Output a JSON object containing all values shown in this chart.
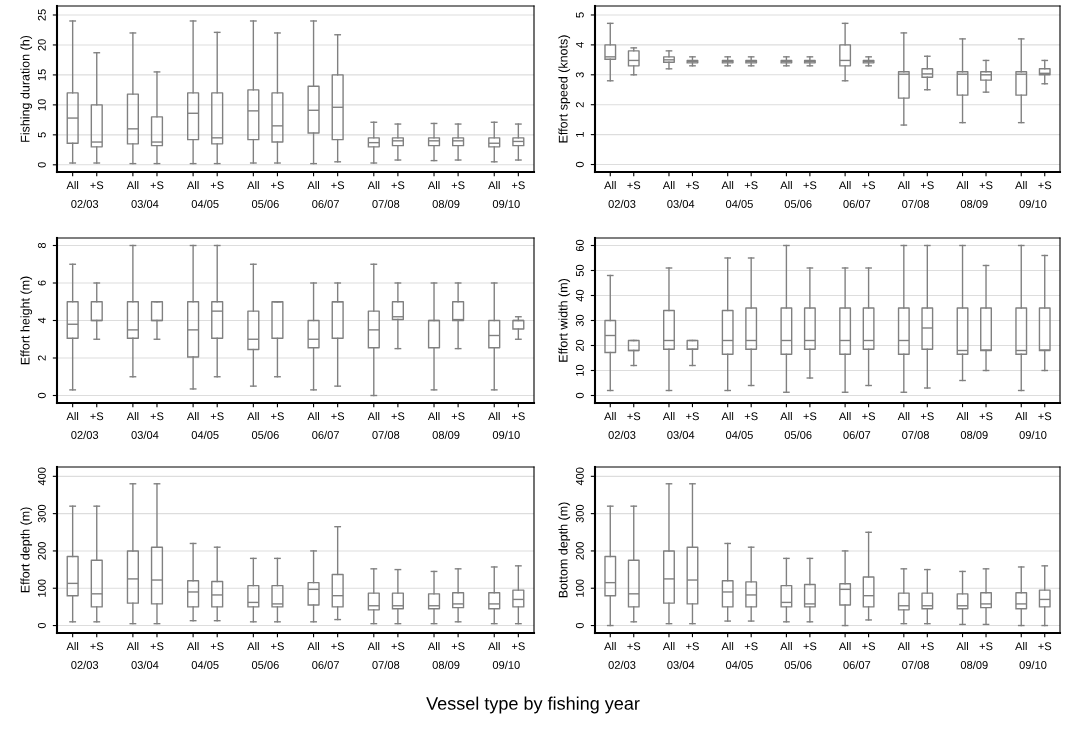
{
  "chart_data": [
    {
      "type": "box",
      "ylabel": "Fishing duration (h)",
      "categories": [
        "All",
        "+S",
        "All",
        "+S",
        "All",
        "+S",
        "All",
        "+S",
        "All",
        "+S",
        "All",
        "+S",
        "All",
        "+S",
        "All",
        "+S"
      ],
      "annotations": [
        "02/03",
        "03/04",
        "04/05",
        "05/06",
        "06/07",
        "07/08",
        "08/09",
        "09/10"
      ],
      "color": "#808080",
      "ylim": [
        -1.2,
        26.5
      ],
      "yticks": [
        0,
        5,
        10,
        15,
        20,
        25
      ],
      "grid": "y",
      "boxes": [
        {
          "low": 0.3,
          "q1": 3.6,
          "median": 7.8,
          "q3": 12,
          "high": 24
        },
        {
          "low": 0.3,
          "q1": 3,
          "median": 3.8,
          "q3": 10,
          "high": 18.7
        },
        {
          "low": 0.2,
          "q1": 3.5,
          "median": 6,
          "q3": 11.8,
          "high": 22
        },
        {
          "low": 0.2,
          "q1": 3.2,
          "median": 3.8,
          "q3": 8,
          "high": 15.5
        },
        {
          "low": 0.2,
          "q1": 4.2,
          "median": 8.6,
          "q3": 12,
          "high": 24
        },
        {
          "low": 0.2,
          "q1": 3.5,
          "median": 4.5,
          "q3": 12,
          "high": 22.1
        },
        {
          "low": 0.3,
          "q1": 4.2,
          "median": 9,
          "q3": 12.5,
          "high": 24
        },
        {
          "low": 0.3,
          "q1": 3.8,
          "median": 6.5,
          "q3": 12,
          "high": 22
        },
        {
          "low": 0.2,
          "q1": 5.3,
          "median": 9.1,
          "q3": 13.1,
          "high": 24
        },
        {
          "low": 0.5,
          "q1": 4.2,
          "median": 9.6,
          "q3": 15,
          "high": 21.7
        },
        {
          "low": 0.3,
          "q1": 3,
          "median": 3.7,
          "q3": 4.5,
          "high": 7.1
        },
        {
          "low": 0.8,
          "q1": 3.2,
          "median": 4,
          "q3": 4.5,
          "high": 6.8
        },
        {
          "low": 0.7,
          "q1": 3.2,
          "median": 4,
          "q3": 4.5,
          "high": 6.9
        },
        {
          "low": 0.8,
          "q1": 3.2,
          "median": 4,
          "q3": 4.5,
          "high": 6.8
        },
        {
          "low": 0.5,
          "q1": 3,
          "median": 3.6,
          "q3": 4.5,
          "high": 7.1
        },
        {
          "low": 0.8,
          "q1": 3.2,
          "median": 3.9,
          "q3": 4.5,
          "high": 6.8
        }
      ]
    },
    {
      "type": "box",
      "ylabel": "Effort speed (knots)",
      "categories": [
        "All",
        "+S",
        "All",
        "+S",
        "All",
        "+S",
        "All",
        "+S",
        "All",
        "+S",
        "All",
        "+S",
        "All",
        "+S",
        "All",
        "+S"
      ],
      "annotations": [
        "02/03",
        "03/04",
        "04/05",
        "05/06",
        "06/07",
        "07/08",
        "08/09",
        "09/10"
      ],
      "color": "#808080",
      "ylim": [
        -0.25,
        5.3
      ],
      "yticks": [
        0,
        1,
        2,
        3,
        4,
        5
      ],
      "grid": "y",
      "boxes": [
        {
          "low": 2.8,
          "q1": 3.52,
          "median": 3.6,
          "q3": 4.0,
          "high": 4.72
        },
        {
          "low": 3.0,
          "q1": 3.3,
          "median": 3.48,
          "q3": 3.8,
          "high": 3.9
        },
        {
          "low": 3.2,
          "q1": 3.42,
          "median": 3.5,
          "q3": 3.6,
          "high": 3.8
        },
        {
          "low": 3.3,
          "q1": 3.4,
          "median": 3.44,
          "q3": 3.48,
          "high": 3.6
        },
        {
          "low": 3.3,
          "q1": 3.4,
          "median": 3.44,
          "q3": 3.48,
          "high": 3.6
        },
        {
          "low": 3.3,
          "q1": 3.4,
          "median": 3.44,
          "q3": 3.48,
          "high": 3.6
        },
        {
          "low": 3.3,
          "q1": 3.4,
          "median": 3.44,
          "q3": 3.48,
          "high": 3.6
        },
        {
          "low": 3.3,
          "q1": 3.4,
          "median": 3.44,
          "q3": 3.48,
          "high": 3.6
        },
        {
          "low": 2.8,
          "q1": 3.3,
          "median": 3.48,
          "q3": 4.0,
          "high": 4.72
        },
        {
          "low": 3.3,
          "q1": 3.4,
          "median": 3.44,
          "q3": 3.48,
          "high": 3.6
        },
        {
          "low": 1.32,
          "q1": 2.22,
          "median": 3.02,
          "q3": 3.1,
          "high": 4.4
        },
        {
          "low": 2.5,
          "q1": 2.92,
          "median": 3.03,
          "q3": 3.2,
          "high": 3.62
        },
        {
          "low": 1.4,
          "q1": 2.32,
          "median": 3.02,
          "q3": 3.1,
          "high": 4.2
        },
        {
          "low": 2.42,
          "q1": 2.82,
          "median": 3.0,
          "q3": 3.1,
          "high": 3.48
        },
        {
          "low": 1.4,
          "q1": 2.32,
          "median": 3.02,
          "q3": 3.1,
          "high": 4.2
        },
        {
          "low": 2.7,
          "q1": 3.0,
          "median": 3.05,
          "q3": 3.2,
          "high": 3.48
        }
      ]
    },
    {
      "type": "box",
      "ylabel": "Effort height (m)",
      "categories": [
        "All",
        "+S",
        "All",
        "+S",
        "All",
        "+S",
        "All",
        "+S",
        "All",
        "+S",
        "All",
        "+S",
        "All",
        "+S",
        "All",
        "+S"
      ],
      "annotations": [
        "02/03",
        "03/04",
        "04/05",
        "05/06",
        "06/07",
        "07/08",
        "08/09",
        "09/10"
      ],
      "color": "#808080",
      "ylim": [
        -0.4,
        8.4
      ],
      "yticks": [
        0,
        2,
        4,
        6,
        8
      ],
      "grid": "y",
      "boxes": [
        {
          "low": 0.3,
          "q1": 3.05,
          "median": 3.8,
          "q3": 5,
          "high": 7
        },
        {
          "low": 3,
          "q1": 4,
          "median": 4,
          "q3": 5,
          "high": 6
        },
        {
          "low": 1,
          "q1": 3.05,
          "median": 3.5,
          "q3": 5,
          "high": 8
        },
        {
          "low": 3,
          "q1": 4,
          "median": 4,
          "q3": 5,
          "high": 5
        },
        {
          "low": 0.35,
          "q1": 2.05,
          "median": 3.5,
          "q3": 5,
          "high": 8
        },
        {
          "low": 1,
          "q1": 3.05,
          "median": 4.5,
          "q3": 5,
          "high": 8
        },
        {
          "low": 0.5,
          "q1": 2.45,
          "median": 3,
          "q3": 4.5,
          "high": 7
        },
        {
          "low": 1,
          "q1": 3.05,
          "median": 5,
          "q3": 5,
          "high": 5
        },
        {
          "low": 0.3,
          "q1": 2.55,
          "median": 3,
          "q3": 4,
          "high": 6
        },
        {
          "low": 0.5,
          "q1": 3.05,
          "median": 5,
          "q3": 5,
          "high": 6
        },
        {
          "low": 0,
          "q1": 2.55,
          "median": 3.5,
          "q3": 4.5,
          "high": 7
        },
        {
          "low": 2.5,
          "q1": 4.05,
          "median": 4.2,
          "q3": 5,
          "high": 6
        },
        {
          "low": 0.3,
          "q1": 2.55,
          "median": 4,
          "q3": 4,
          "high": 6
        },
        {
          "low": 2.5,
          "q1": 4,
          "median": 4.05,
          "q3": 5,
          "high": 6
        },
        {
          "low": 0.3,
          "q1": 2.55,
          "median": 3.2,
          "q3": 4,
          "high": 6
        },
        {
          "low": 3,
          "q1": 3.55,
          "median": 4,
          "q3": 4,
          "high": 4.2
        }
      ]
    },
    {
      "type": "box",
      "ylabel": "Effort width (m)",
      "categories": [
        "All",
        "+S",
        "All",
        "+S",
        "All",
        "+S",
        "All",
        "+S",
        "All",
        "+S",
        "All",
        "+S",
        "All",
        "+S",
        "All",
        "+S"
      ],
      "annotations": [
        "02/03",
        "03/04",
        "04/05",
        "05/06",
        "06/07",
        "07/08",
        "08/09",
        "09/10"
      ],
      "color": "#808080",
      "ylim": [
        -3,
        63
      ],
      "yticks": [
        0,
        10,
        20,
        30,
        40,
        50,
        60
      ],
      "grid": "y",
      "boxes": [
        {
          "low": 2,
          "q1": 17.2,
          "median": 24,
          "q3": 30,
          "high": 48
        },
        {
          "low": 12,
          "q1": 18,
          "median": 18,
          "q3": 22,
          "high": 22
        },
        {
          "low": 2,
          "q1": 18.5,
          "median": 22,
          "q3": 34,
          "high": 51
        },
        {
          "low": 12,
          "q1": 18.5,
          "median": 18.5,
          "q3": 22,
          "high": 22
        },
        {
          "low": 2,
          "q1": 16.5,
          "median": 22,
          "q3": 34,
          "high": 55
        },
        {
          "low": 4,
          "q1": 18.5,
          "median": 22,
          "q3": 35,
          "high": 55
        },
        {
          "low": 1.3,
          "q1": 16.5,
          "median": 22,
          "q3": 35,
          "high": 60
        },
        {
          "low": 7,
          "q1": 18.5,
          "median": 22,
          "q3": 35,
          "high": 51
        },
        {
          "low": 1.3,
          "q1": 16.5,
          "median": 22,
          "q3": 35,
          "high": 51
        },
        {
          "low": 4,
          "q1": 18.5,
          "median": 22,
          "q3": 35,
          "high": 51
        },
        {
          "low": 1.3,
          "q1": 16.5,
          "median": 22,
          "q3": 35,
          "high": 60
        },
        {
          "low": 3,
          "q1": 18.5,
          "median": 27,
          "q3": 35,
          "high": 60
        },
        {
          "low": 6,
          "q1": 16.5,
          "median": 18,
          "q3": 35,
          "high": 60
        },
        {
          "low": 10,
          "q1": 18,
          "median": 18.2,
          "q3": 35,
          "high": 52
        },
        {
          "low": 2,
          "q1": 16.5,
          "median": 18,
          "q3": 35,
          "high": 60
        },
        {
          "low": 10,
          "q1": 18,
          "median": 18.2,
          "q3": 35,
          "high": 56
        }
      ]
    },
    {
      "type": "box",
      "ylabel": "Effort depth (m)",
      "categories": [
        "All",
        "+S",
        "All",
        "+S",
        "All",
        "+S",
        "All",
        "+S",
        "All",
        "+S",
        "All",
        "+S",
        "All",
        "+S",
        "All",
        "+S"
      ],
      "annotations": [
        "02/03",
        "03/04",
        "04/05",
        "05/06",
        "06/07",
        "07/08",
        "08/09",
        "09/10"
      ],
      "color": "#808080",
      "ylim": [
        -20,
        425
      ],
      "yticks": [
        0,
        100,
        200,
        300,
        400
      ],
      "grid": "y",
      "boxes": [
        {
          "low": 10,
          "q1": 80,
          "median": 113,
          "q3": 185,
          "high": 320
        },
        {
          "low": 10,
          "q1": 50,
          "median": 85,
          "q3": 175,
          "high": 320
        },
        {
          "low": 5,
          "q1": 60,
          "median": 125,
          "q3": 200,
          "high": 380
        },
        {
          "low": 5,
          "q1": 58,
          "median": 122,
          "q3": 210,
          "high": 380
        },
        {
          "low": 13,
          "q1": 50,
          "median": 90,
          "q3": 120,
          "high": 220
        },
        {
          "low": 13,
          "q1": 50,
          "median": 82,
          "q3": 118,
          "high": 210
        },
        {
          "low": 10,
          "q1": 50,
          "median": 62,
          "q3": 107,
          "high": 180
        },
        {
          "low": 10,
          "q1": 50,
          "median": 58,
          "q3": 107,
          "high": 180
        },
        {
          "low": 10,
          "q1": 55,
          "median": 97,
          "q3": 115,
          "high": 200
        },
        {
          "low": 16,
          "q1": 50,
          "median": 80,
          "q3": 137,
          "high": 265
        },
        {
          "low": 5,
          "q1": 42,
          "median": 53,
          "q3": 87,
          "high": 152
        },
        {
          "low": 5,
          "q1": 45,
          "median": 53,
          "q3": 87,
          "high": 150
        },
        {
          "low": 5,
          "q1": 45,
          "median": 53,
          "q3": 85,
          "high": 145
        },
        {
          "low": 10,
          "q1": 48,
          "median": 58,
          "q3": 88,
          "high": 152
        },
        {
          "low": 5,
          "q1": 45,
          "median": 58,
          "q3": 88,
          "high": 157
        },
        {
          "low": 5,
          "q1": 50,
          "median": 70,
          "q3": 95,
          "high": 160
        }
      ]
    },
    {
      "type": "box",
      "ylabel": "Bottom depth (m)",
      "xlabel": "Vessel type by fishing year",
      "categories": [
        "All",
        "+S",
        "All",
        "+S",
        "All",
        "+S",
        "All",
        "+S",
        "All",
        "+S",
        "All",
        "+S",
        "All",
        "+S",
        "All",
        "+S"
      ],
      "annotations": [
        "02/03",
        "03/04",
        "04/05",
        "05/06",
        "06/07",
        "07/08",
        "08/09",
        "09/10"
      ],
      "color": "#808080",
      "ylim": [
        -20,
        425
      ],
      "yticks": [
        0,
        100,
        200,
        300,
        400
      ],
      "grid": "y",
      "boxes": [
        {
          "low": 0,
          "q1": 80,
          "median": 115,
          "q3": 185,
          "high": 320
        },
        {
          "low": 10,
          "q1": 50,
          "median": 85,
          "q3": 175,
          "high": 320
        },
        {
          "low": 5,
          "q1": 60,
          "median": 125,
          "q3": 200,
          "high": 380
        },
        {
          "low": 5,
          "q1": 58,
          "median": 122,
          "q3": 210,
          "high": 380
        },
        {
          "low": 12,
          "q1": 50,
          "median": 90,
          "q3": 120,
          "high": 220
        },
        {
          "low": 12,
          "q1": 50,
          "median": 82,
          "q3": 117,
          "high": 210
        },
        {
          "low": 10,
          "q1": 50,
          "median": 62,
          "q3": 107,
          "high": 180
        },
        {
          "low": 10,
          "q1": 50,
          "median": 58,
          "q3": 110,
          "high": 180
        },
        {
          "low": 0,
          "q1": 55,
          "median": 97,
          "q3": 112,
          "high": 200
        },
        {
          "low": 15,
          "q1": 50,
          "median": 80,
          "q3": 130,
          "high": 250
        },
        {
          "low": 5,
          "q1": 42,
          "median": 53,
          "q3": 87,
          "high": 152
        },
        {
          "low": 5,
          "q1": 45,
          "median": 53,
          "q3": 87,
          "high": 150
        },
        {
          "low": 3,
          "q1": 45,
          "median": 53,
          "q3": 85,
          "high": 145
        },
        {
          "low": 3,
          "q1": 48,
          "median": 58,
          "q3": 88,
          "high": 152
        },
        {
          "low": 0,
          "q1": 45,
          "median": 58,
          "q3": 88,
          "high": 157
        },
        {
          "low": 0,
          "q1": 50,
          "median": 70,
          "q3": 95,
          "high": 160
        }
      ]
    }
  ]
}
